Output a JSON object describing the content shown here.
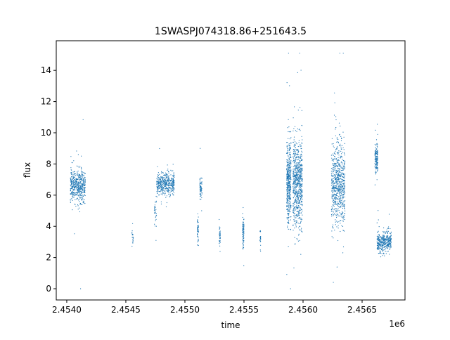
{
  "chart_data": {
    "type": "scatter",
    "title": "1SWASPJ074318.86+251643.5",
    "xlabel": "time",
    "ylabel": "flux",
    "x_offset_label": "1e6",
    "xlim": [
      2453911,
      2456863
    ],
    "ylim": [
      -0.72,
      15.9
    ],
    "xticks": [
      2454000,
      2454500,
      2455000,
      2455500,
      2456000,
      2456500
    ],
    "xtick_labels": [
      "2.4540",
      "2.4545",
      "2.4550",
      "2.4555",
      "2.4560",
      "2.4565"
    ],
    "yticks": [
      0,
      2,
      4,
      6,
      8,
      10,
      12,
      14
    ],
    "ytick_labels": [
      "0",
      "2",
      "4",
      "6",
      "8",
      "10",
      "12",
      "14"
    ],
    "grid": false,
    "color": "#1f77b4",
    "clusters": [
      {
        "x_start": 2454030,
        "x_end": 2454157,
        "y_center": 6.6,
        "y_spread": 0.5,
        "n": 500
      },
      {
        "x_start": 2454548,
        "x_end": 2454566,
        "y_center": 3.2,
        "y_spread": 0.35,
        "n": 20
      },
      {
        "x_start": 2454741,
        "x_end": 2454760,
        "y_center": 5.0,
        "y_spread": 0.5,
        "n": 30
      },
      {
        "x_start": 2454760,
        "x_end": 2454910,
        "y_center": 6.7,
        "y_spread": 0.35,
        "n": 450
      },
      {
        "x_start": 2455105,
        "x_end": 2455115,
        "y_center": 3.7,
        "y_spread": 0.45,
        "n": 50
      },
      {
        "x_start": 2455126,
        "x_end": 2455145,
        "y_center": 6.5,
        "y_spread": 0.35,
        "n": 70
      },
      {
        "x_start": 2455290,
        "x_end": 2455300,
        "y_center": 3.3,
        "y_spread": 0.35,
        "n": 40
      },
      {
        "x_start": 2455488,
        "x_end": 2455500,
        "y_center": 3.7,
        "y_spread": 0.45,
        "n": 90
      },
      {
        "x_start": 2455636,
        "x_end": 2455642,
        "y_center": 3.2,
        "y_spread": 0.3,
        "n": 25
      },
      {
        "x_start": 2455861,
        "x_end": 2455898,
        "y_center": 6.8,
        "y_spread": 1.3,
        "n": 450
      },
      {
        "x_start": 2455915,
        "x_end": 2455994,
        "y_center": 6.8,
        "y_spread": 1.4,
        "n": 700
      },
      {
        "x_start": 2456240,
        "x_end": 2456355,
        "y_center": 6.7,
        "y_spread": 1.3,
        "n": 700
      },
      {
        "x_start": 2456608,
        "x_end": 2456633,
        "y_center": 8.3,
        "y_spread": 0.45,
        "n": 150
      },
      {
        "x_start": 2456626,
        "x_end": 2456747,
        "y_center": 3.0,
        "y_spread": 0.35,
        "n": 400
      }
    ]
  }
}
